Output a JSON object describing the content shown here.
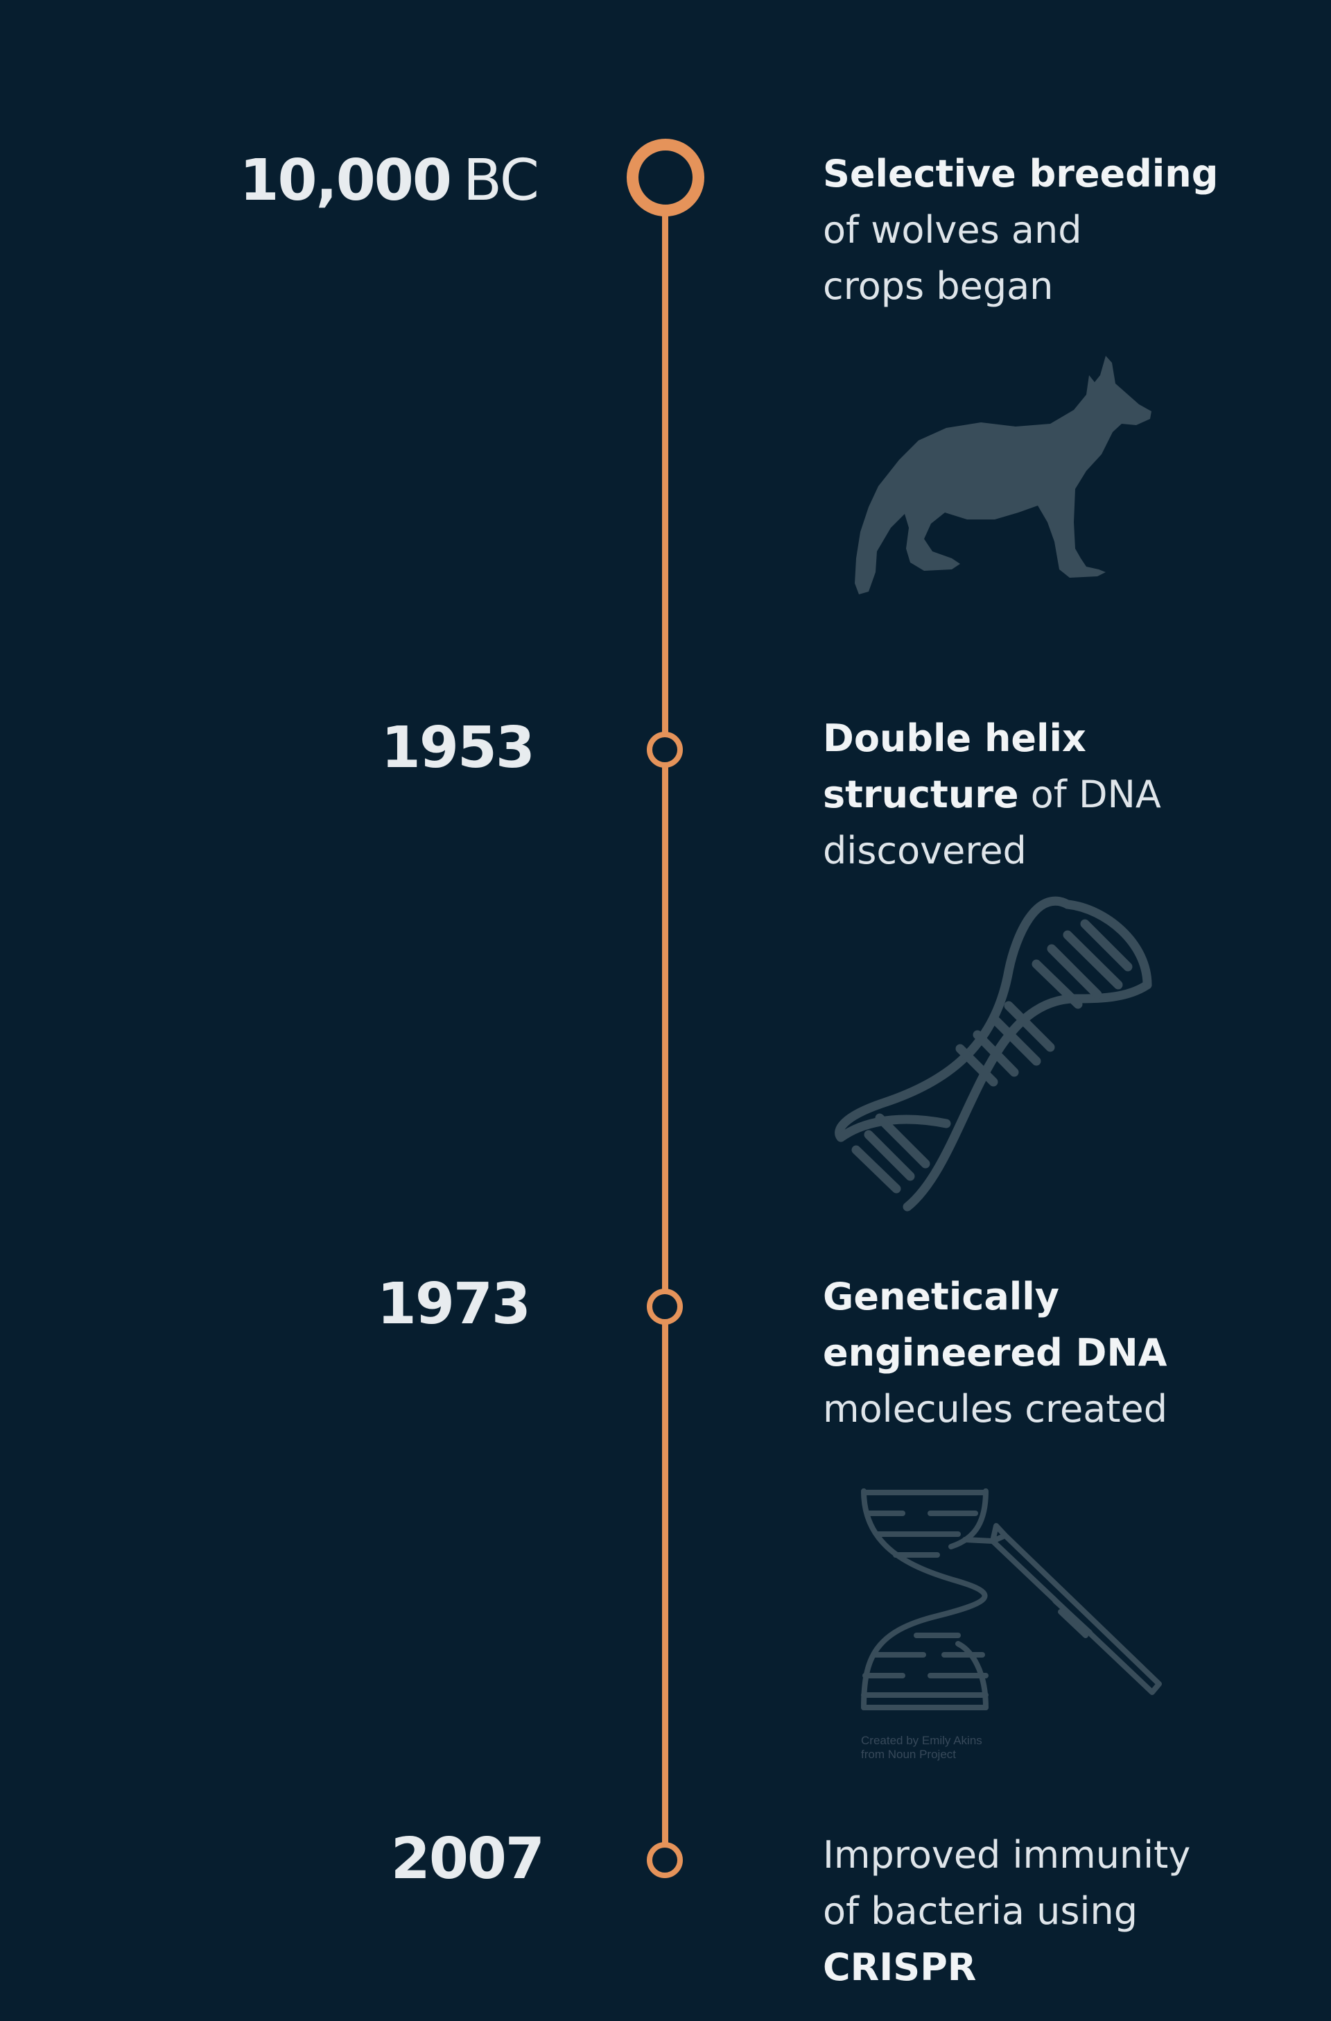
{
  "timeline": {
    "accent_color": "#e5935a",
    "background_color": "#071e2f",
    "illustration_color": "#394d5a",
    "events": [
      {
        "year_number": "10,000",
        "year_suffix": "BC",
        "desc_line1": "Selective breeding",
        "desc_line2": "of wolves and",
        "desc_line3": "crops began",
        "icon": "dog-silhouette-icon"
      },
      {
        "year_number": "1953",
        "desc_line1": "Double helix",
        "desc_line2_bold": "structure",
        "desc_line2_rest": " of DNA",
        "desc_line3": "discovered",
        "icon": "dna-helix-icon"
      },
      {
        "year_number": "1973",
        "desc_line1": "Genetically",
        "desc_line2": "engineered DNA",
        "desc_line3": "molecules created",
        "icon": "dna-tweezers-icon",
        "credit_line1": "Created by Emily Akins",
        "credit_line2": "from Noun Project"
      },
      {
        "year_number": "2007",
        "desc_line1": "Improved immunity",
        "desc_line2": "of bacteria using",
        "desc_line3": "CRISPR",
        "icon": ""
      }
    ]
  }
}
